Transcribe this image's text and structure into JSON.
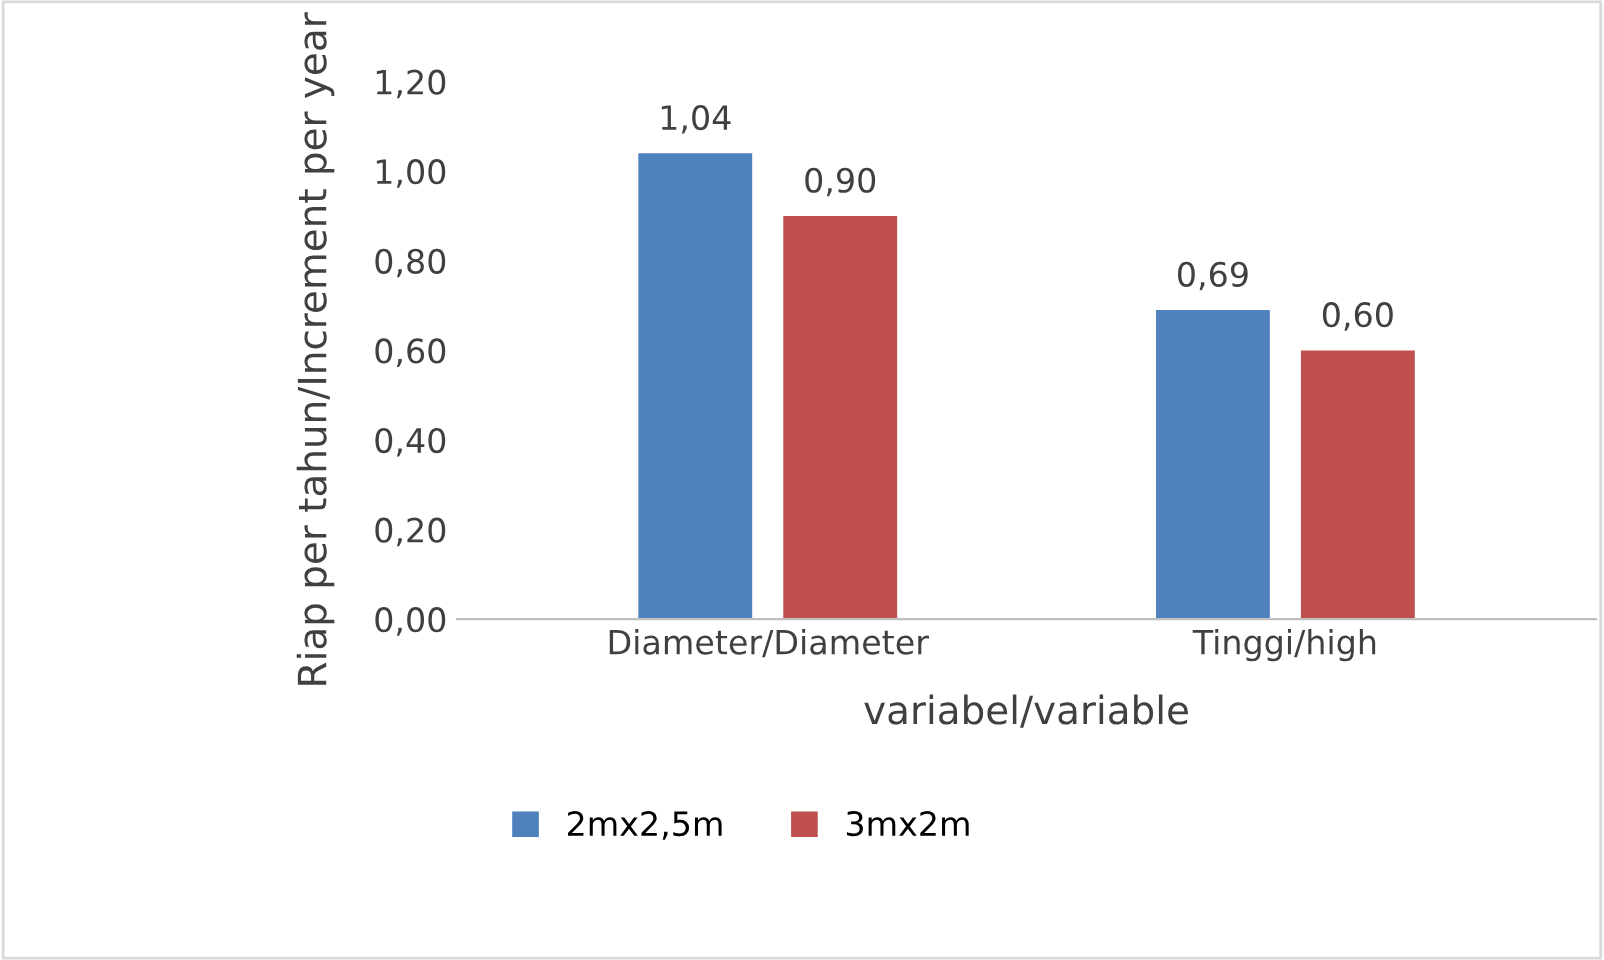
{
  "chart_data": {
    "type": "bar",
    "xlabel": "variabel/variable",
    "ylabel": "Riap per tahun/Increment per year",
    "categories": [
      "Diameter/Diameter",
      "Tinggi/high"
    ],
    "series": [
      {
        "name": "2mx2,5m",
        "color": "#4f81bd",
        "values": [
          1.04,
          0.69
        ],
        "value_labels": [
          "1,04",
          "0,69"
        ]
      },
      {
        "name": "3mx2m",
        "color": "#c0504d",
        "values": [
          0.9,
          0.6
        ],
        "value_labels": [
          "0,90",
          "0,60"
        ]
      }
    ],
    "ylim": [
      0,
      1.2
    ],
    "yticks": [
      {
        "value": 0,
        "label": "0,00"
      },
      {
        "value": 0.2,
        "label": "0,20"
      },
      {
        "value": 0.4,
        "label": "0,40"
      },
      {
        "value": 0.6,
        "label": "0,60"
      },
      {
        "value": 0.8,
        "label": "0,80"
      },
      {
        "value": 1.0,
        "label": "1,00"
      },
      {
        "value": 1.2,
        "label": "1,20"
      }
    ],
    "grid": false,
    "legend": "bottom"
  }
}
